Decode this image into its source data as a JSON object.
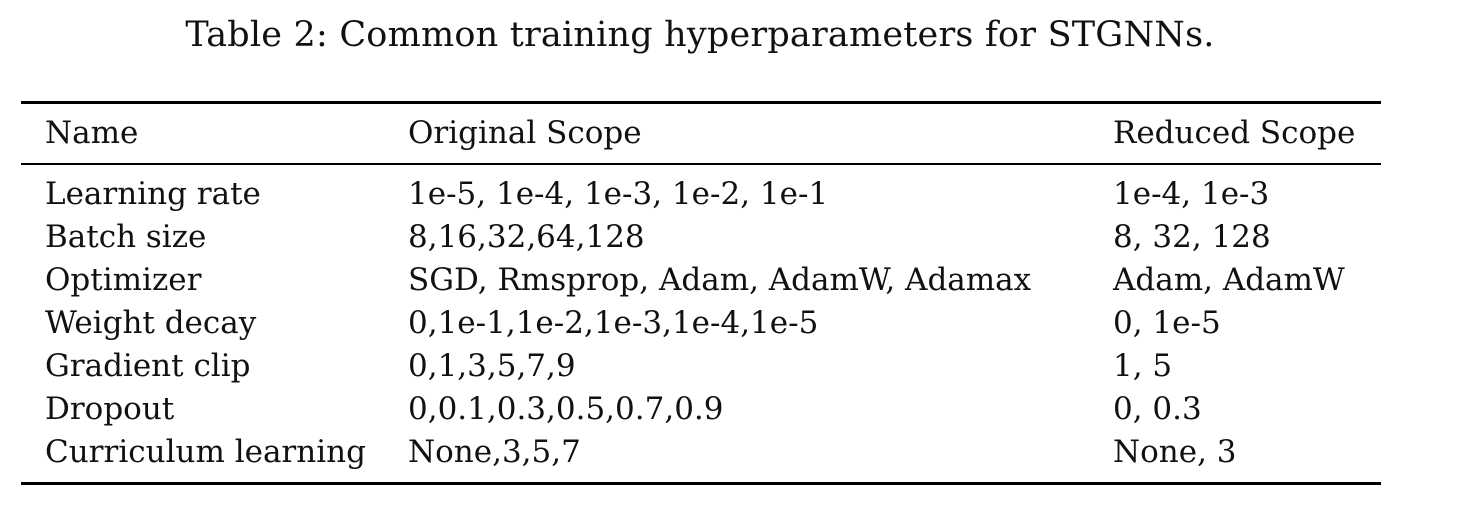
{
  "caption": "Table 2: Common training hyperparameters for STGNNs.",
  "table": {
    "headers": [
      "Name",
      "Original Scope",
      "Reduced Scope"
    ],
    "rows": [
      [
        "Learning rate",
        "1e-5, 1e-4, 1e-3, 1e-2, 1e-1",
        "1e-4, 1e-3"
      ],
      [
        "Batch size",
        "8,16,32,64,128",
        "8, 32, 128"
      ],
      [
        "Optimizer",
        "SGD, Rmsprop, Adam, AdamW, Adamax",
        "Adam, AdamW"
      ],
      [
        "Weight decay",
        "0,1e-1,1e-2,1e-3,1e-4,1e-5",
        "0, 1e-5"
      ],
      [
        "Gradient clip",
        "0,1,3,5,7,9",
        "1, 5"
      ],
      [
        "Dropout",
        "0,0.1,0.3,0.5,0.7,0.9",
        "0, 0.3"
      ],
      [
        "Curriculum learning",
        "None,3,5,7",
        "None, 3"
      ]
    ]
  }
}
